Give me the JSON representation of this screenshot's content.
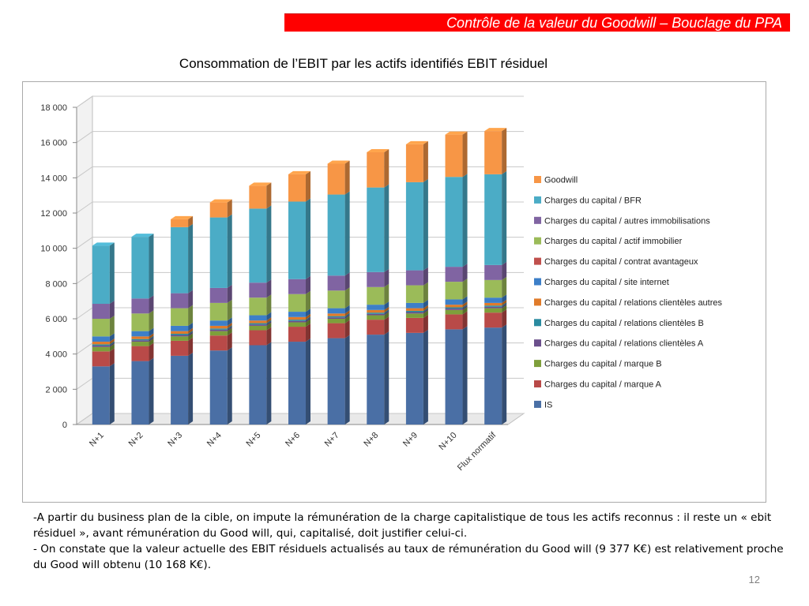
{
  "header": {
    "banner_text": "Contrôle de la valeur du Goodwill – Bouclage du PPA"
  },
  "slide": {
    "chart_title": "Consommation de l’EBIT par les actifs identifiés EBIT résiduel",
    "bullet_1": "-A partir du business plan de la cible, on impute la rémunération de la charge capitalistique de tous les actifs reconnus : il reste un « ebit résiduel », avant rémunération du Good will, qui, capitalisé, doit justifier celui-ci.",
    "bullet_2": "- On constate que la valeur actuelle des EBIT résiduels actualisés au taux de rémunération du Good will (9 377 K€) est relativement proche du Good will obtenu (10 168 K€).",
    "page_number": "12"
  },
  "chart_data": {
    "type": "bar",
    "stacked": true,
    "style": "3d",
    "title": "",
    "xlabel": "",
    "ylabel": "",
    "ylim": [
      0,
      18000
    ],
    "yticks": [
      0,
      2000,
      4000,
      6000,
      8000,
      10000,
      12000,
      14000,
      16000,
      18000
    ],
    "ytick_labels": [
      "0",
      "2 000",
      "4 000",
      "6 000",
      "8 000",
      "10 000",
      "12 000",
      "14 000",
      "16 000",
      "18 000"
    ],
    "grid": true,
    "legend_position": "right",
    "categories": [
      "N+1",
      "N+2",
      "N+3",
      "N+4",
      "N+5",
      "N+6",
      "N+7",
      "N+8",
      "N+9",
      "N+10",
      "Flux normatif"
    ],
    "series": [
      {
        "name": "IS",
        "color": "#4a6fa5",
        "values": [
          3300,
          3600,
          3900,
          4200,
          4500,
          4700,
          4900,
          5100,
          5200,
          5400,
          5500
        ]
      },
      {
        "name": "Charges du capital / marque  A",
        "color": "#b94a48",
        "values": [
          850,
          850,
          850,
          850,
          850,
          850,
          850,
          850,
          850,
          850,
          850
        ]
      },
      {
        "name": "Charges du capital / marque  B",
        "color": "#7e9f3b",
        "values": [
          250,
          250,
          250,
          250,
          250,
          250,
          250,
          250,
          250,
          250,
          250
        ]
      },
      {
        "name": "Charges du capital / relations clientèles A",
        "color": "#6b4f8c",
        "values": [
          80,
          80,
          80,
          80,
          80,
          80,
          80,
          80,
          80,
          80,
          80
        ]
      },
      {
        "name": "Charges du capital / relations clientèles B",
        "color": "#2a8ba0",
        "values": [
          70,
          70,
          70,
          70,
          70,
          70,
          70,
          70,
          70,
          70,
          70
        ]
      },
      {
        "name": "Charges du capital / relations clientèles autres",
        "color": "#e07b2a",
        "values": [
          150,
          150,
          150,
          150,
          150,
          150,
          150,
          150,
          150,
          150,
          150
        ]
      },
      {
        "name": "Charges du capital / site internet",
        "color": "#3d7fc8",
        "values": [
          300,
          300,
          300,
          300,
          300,
          300,
          300,
          300,
          300,
          300,
          300
        ]
      },
      {
        "name": "Charges du capital / contrat avantageux",
        "color": "#c0504d",
        "values": [
          0,
          0,
          0,
          0,
          0,
          0,
          0,
          0,
          0,
          0,
          0
        ]
      },
      {
        "name": "Charges du capital / actif immobilier",
        "color": "#9bbb59",
        "values": [
          1000,
          1000,
          1000,
          1000,
          1000,
          1000,
          1000,
          1000,
          1000,
          1000,
          1000
        ]
      },
      {
        "name": "Charges du capital / autres immobilisations",
        "color": "#8064a2",
        "values": [
          850,
          850,
          850,
          850,
          850,
          850,
          850,
          850,
          850,
          850,
          850
        ]
      },
      {
        "name": "Charges du capital / BFR",
        "color": "#4bacc6",
        "values": [
          3300,
          3500,
          3750,
          4000,
          4200,
          4400,
          4600,
          4800,
          5000,
          5100,
          5150
        ]
      },
      {
        "name": "Goodwill",
        "color": "#f79646",
        "values": [
          0,
          0,
          450,
          850,
          1300,
          1550,
          1750,
          2000,
          2150,
          2400,
          2450
        ]
      }
    ]
  }
}
